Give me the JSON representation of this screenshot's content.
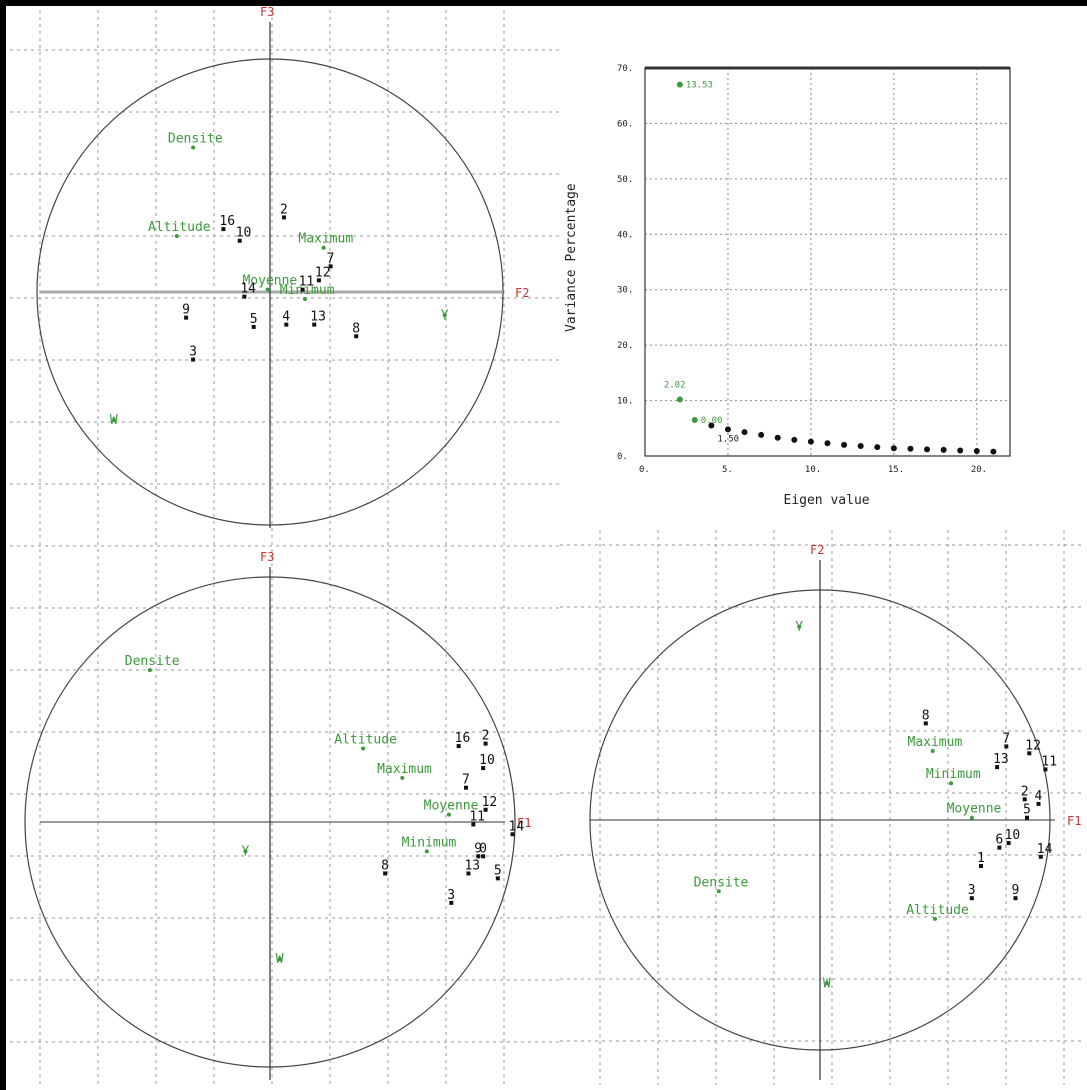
{
  "colors": {
    "variable": "#3b9a3b",
    "obs": "#111111",
    "axis_name": "#cc3333",
    "grid": "#9a9a9a",
    "circle": "#444444"
  },
  "chart_data": [
    {
      "type": "scatter",
      "id": "circleA",
      "axis_h": "F2",
      "axis_v": "F3",
      "variables": [
        {
          "label": "Densite",
          "x": -0.33,
          "y": 0.62
        },
        {
          "label": "Altitude",
          "x": -0.4,
          "y": 0.24
        },
        {
          "label": "Moyenne",
          "x": -0.01,
          "y": 0.01
        },
        {
          "label": "Maximum",
          "x": 0.23,
          "y": 0.19
        },
        {
          "label": "Minimum",
          "x": 0.15,
          "y": -0.03
        },
        {
          "label": "Y",
          "x": 0.75,
          "y": -0.1
        },
        {
          "label": "W",
          "x": -0.67,
          "y": -0.55
        }
      ],
      "observations": [
        {
          "label": "2",
          "x": 0.06,
          "y": 0.32
        },
        {
          "label": "16",
          "x": -0.2,
          "y": 0.27
        },
        {
          "label": "10",
          "x": -0.13,
          "y": 0.22
        },
        {
          "label": "7",
          "x": 0.26,
          "y": 0.11
        },
        {
          "label": "12",
          "x": 0.21,
          "y": 0.05
        },
        {
          "label": "11",
          "x": 0.14,
          "y": 0.01
        },
        {
          "label": "14",
          "x": -0.11,
          "y": -0.02
        },
        {
          "label": "9",
          "x": -0.36,
          "y": -0.11
        },
        {
          "label": "5",
          "x": -0.07,
          "y": -0.15
        },
        {
          "label": "4",
          "x": 0.07,
          "y": -0.14
        },
        {
          "label": "13",
          "x": 0.19,
          "y": -0.14
        },
        {
          "label": "8",
          "x": 0.37,
          "y": -0.19
        },
        {
          "label": "3",
          "x": -0.33,
          "y": -0.29
        }
      ]
    },
    {
      "type": "scatter",
      "id": "circleB",
      "axis_h": "F1",
      "axis_v": "F3",
      "variables": [
        {
          "label": "Densite",
          "x": -0.49,
          "y": 0.62
        },
        {
          "label": "Altitude",
          "x": 0.38,
          "y": 0.3
        },
        {
          "label": "Maximum",
          "x": 0.54,
          "y": 0.18
        },
        {
          "label": "Moyenne",
          "x": 0.73,
          "y": 0.03
        },
        {
          "label": "Minimum",
          "x": 0.64,
          "y": -0.12
        },
        {
          "label": "Y",
          "x": -0.1,
          "y": -0.12
        },
        {
          "label": "W",
          "x": 0.04,
          "y": -0.56
        }
      ],
      "observations": [
        {
          "label": "16",
          "x": 0.77,
          "y": 0.31
        },
        {
          "label": "2",
          "x": 0.88,
          "y": 0.32
        },
        {
          "label": "10",
          "x": 0.87,
          "y": 0.22
        },
        {
          "label": "7",
          "x": 0.8,
          "y": 0.14
        },
        {
          "label": "12",
          "x": 0.88,
          "y": 0.05
        },
        {
          "label": "11",
          "x": 0.83,
          "y": -0.01
        },
        {
          "label": "14",
          "x": 0.99,
          "y": -0.05
        },
        {
          "label": "9",
          "x": 0.85,
          "y": -0.14
        },
        {
          "label": "0",
          "x": 0.87,
          "y": -0.14
        },
        {
          "label": "13",
          "x": 0.81,
          "y": -0.21
        },
        {
          "label": "5",
          "x": 0.93,
          "y": -0.23
        },
        {
          "label": "8",
          "x": 0.47,
          "y": -0.21
        },
        {
          "label": "3",
          "x": 0.74,
          "y": -0.33
        }
      ]
    },
    {
      "type": "scatter",
      "id": "circleC",
      "axis_h": "F1",
      "axis_v": "F2",
      "variables": [
        {
          "label": "Y",
          "x": -0.09,
          "y": 0.84
        },
        {
          "label": "Maximum",
          "x": 0.49,
          "y": 0.3
        },
        {
          "label": "Minimum",
          "x": 0.57,
          "y": 0.16
        },
        {
          "label": "Moyenne",
          "x": 0.66,
          "y": 0.01
        },
        {
          "label": "Densite",
          "x": -0.44,
          "y": -0.31
        },
        {
          "label": "Altitude",
          "x": 0.5,
          "y": -0.43
        },
        {
          "label": "W",
          "x": 0.03,
          "y": -0.71
        }
      ],
      "observations": [
        {
          "label": "8",
          "x": 0.46,
          "y": 0.42
        },
        {
          "label": "7",
          "x": 0.81,
          "y": 0.32
        },
        {
          "label": "12",
          "x": 0.91,
          "y": 0.29
        },
        {
          "label": "13",
          "x": 0.77,
          "y": 0.23
        },
        {
          "label": "11",
          "x": 0.98,
          "y": 0.22
        },
        {
          "label": "2",
          "x": 0.89,
          "y": 0.09
        },
        {
          "label": "4",
          "x": 0.95,
          "y": 0.07
        },
        {
          "label": "5",
          "x": 0.9,
          "y": 0.01
        },
        {
          "label": "10",
          "x": 0.82,
          "y": -0.1
        },
        {
          "label": "6",
          "x": 0.78,
          "y": -0.12
        },
        {
          "label": "14",
          "x": 0.96,
          "y": -0.16
        },
        {
          "label": "1",
          "x": 0.7,
          "y": -0.2
        },
        {
          "label": "3",
          "x": 0.66,
          "y": -0.34
        },
        {
          "label": "9",
          "x": 0.85,
          "y": -0.34
        }
      ]
    },
    {
      "type": "scatter",
      "id": "scree",
      "xlabel": "Eigen value",
      "ylabel": "Variance Percentage",
      "xlim": [
        0,
        22
      ],
      "ylim": [
        0,
        70
      ],
      "xticks": [
        "0.",
        "5.",
        "10.",
        "15.",
        "20."
      ],
      "yticks": [
        "0.",
        "10.",
        "20.",
        "30.",
        "40.",
        "50.",
        "60.",
        "70."
      ],
      "points": [
        {
          "x": 2.1,
          "y": 67.0,
          "label": "13.53",
          "color": "green"
        },
        {
          "x": 2.1,
          "y": 10.2,
          "label": "2.02",
          "color": "green"
        },
        {
          "x": 3.0,
          "y": 6.5,
          "label": "0.00",
          "color": "green"
        },
        {
          "x": 4.0,
          "y": 5.5,
          "label": "1.50",
          "color": "black"
        },
        {
          "x": 5.0,
          "y": 4.8,
          "color": "black"
        },
        {
          "x": 6.0,
          "y": 4.3,
          "color": "black"
        },
        {
          "x": 7.0,
          "y": 3.8,
          "color": "black"
        },
        {
          "x": 8.0,
          "y": 3.3,
          "color": "black"
        },
        {
          "x": 9.0,
          "y": 2.9,
          "color": "black"
        },
        {
          "x": 10.0,
          "y": 2.6,
          "color": "black"
        },
        {
          "x": 11.0,
          "y": 2.3,
          "color": "black"
        },
        {
          "x": 12.0,
          "y": 2.0,
          "color": "black"
        },
        {
          "x": 13.0,
          "y": 1.8,
          "color": "black"
        },
        {
          "x": 14.0,
          "y": 1.6,
          "color": "black"
        },
        {
          "x": 15.0,
          "y": 1.4,
          "color": "black"
        },
        {
          "x": 16.0,
          "y": 1.3,
          "color": "black"
        },
        {
          "x": 17.0,
          "y": 1.2,
          "color": "black"
        },
        {
          "x": 18.0,
          "y": 1.1,
          "color": "black"
        },
        {
          "x": 19.0,
          "y": 1.0,
          "color": "black"
        },
        {
          "x": 20.0,
          "y": 0.9,
          "color": "black"
        },
        {
          "x": 21.0,
          "y": 0.8,
          "color": "black"
        }
      ]
    }
  ]
}
